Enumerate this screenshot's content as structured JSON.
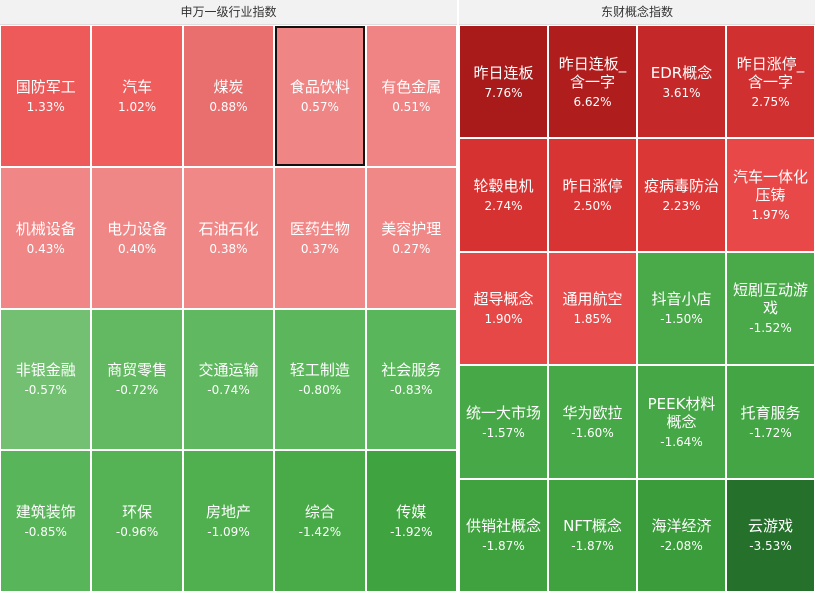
{
  "panels": [
    {
      "title": "申万一级行业指数",
      "columns": 5,
      "cells": [
        {
          "name": "国防军工",
          "change": "1.33%",
          "color": "#ee5a5a"
        },
        {
          "name": "汽车",
          "change": "1.02%",
          "color": "#ef5d5d"
        },
        {
          "name": "煤炭",
          "change": "0.88%",
          "color": "#e96e6e"
        },
        {
          "name": "食品饮料",
          "change": "0.57%",
          "color": "#f08585",
          "selected": true
        },
        {
          "name": "有色金属",
          "change": "0.51%",
          "color": "#f08383"
        },
        {
          "name": "机械设备",
          "change": "0.43%",
          "color": "#f08686"
        },
        {
          "name": "电力设备",
          "change": "0.40%",
          "color": "#f08787"
        },
        {
          "name": "石油石化",
          "change": "0.38%",
          "color": "#f08888"
        },
        {
          "name": "医药生物",
          "change": "0.37%",
          "color": "#f08888"
        },
        {
          "name": "美容护理",
          "change": "0.27%",
          "color": "#f08888"
        },
        {
          "name": "非银金融",
          "change": "-0.57%",
          "color": "#73c073"
        },
        {
          "name": "商贸零售",
          "change": "-0.72%",
          "color": "#62b962"
        },
        {
          "name": "交通运输",
          "change": "-0.74%",
          "color": "#60b860"
        },
        {
          "name": "轻工制造",
          "change": "-0.80%",
          "color": "#5cb75c"
        },
        {
          "name": "社会服务",
          "change": "-0.83%",
          "color": "#5ab65a"
        },
        {
          "name": "建筑装饰",
          "change": "-0.85%",
          "color": "#59b559"
        },
        {
          "name": "环保",
          "change": "-0.96%",
          "color": "#55b355"
        },
        {
          "name": "房地产",
          "change": "-1.09%",
          "color": "#50b050"
        },
        {
          "name": "综合",
          "change": "-1.42%",
          "color": "#48ab48"
        },
        {
          "name": "传媒",
          "change": "-1.92%",
          "color": "#3fa33f"
        }
      ]
    },
    {
      "title": "东财概念指数",
      "columns": 4,
      "cells": [
        {
          "name": "昨日连板",
          "change": "7.76%",
          "color": "#a91b1b"
        },
        {
          "name": "昨日连板_含一字",
          "change": "6.62%",
          "color": "#b01d1d"
        },
        {
          "name": "EDR概念",
          "change": "3.61%",
          "color": "#c42828"
        },
        {
          "name": "昨日涨停_含一字",
          "change": "2.75%",
          "color": "#d03030"
        },
        {
          "name": "轮毂电机",
          "change": "2.74%",
          "color": "#d63232"
        },
        {
          "name": "昨日涨停",
          "change": "2.50%",
          "color": "#d93434"
        },
        {
          "name": "疫病毒防治",
          "change": "2.23%",
          "color": "#dc3737"
        },
        {
          "name": "汽车一体化压铸",
          "change": "1.97%",
          "color": "#e84848"
        },
        {
          "name": "超导概念",
          "change": "1.90%",
          "color": "#e64848"
        },
        {
          "name": "通用航空",
          "change": "1.85%",
          "color": "#e94c4c"
        },
        {
          "name": "抖音小店",
          "change": "-1.50%",
          "color": "#4aaa4a"
        },
        {
          "name": "短剧互动游戏",
          "change": "-1.52%",
          "color": "#4aaa4a"
        },
        {
          "name": "统一大市场",
          "change": "-1.57%",
          "color": "#46a846"
        },
        {
          "name": "华为欧拉",
          "change": "-1.60%",
          "color": "#46a846"
        },
        {
          "name": "PEEK材料概念",
          "change": "-1.64%",
          "color": "#45a745"
        },
        {
          "name": "托育服务",
          "change": "-1.72%",
          "color": "#43a543"
        },
        {
          "name": "供销社概念",
          "change": "-1.87%",
          "color": "#3fa23f"
        },
        {
          "name": "NFT概念",
          "change": "-1.87%",
          "color": "#3fa23f"
        },
        {
          "name": "海洋经济",
          "change": "-2.08%",
          "color": "#3a9c3a"
        },
        {
          "name": "云游戏",
          "change": "-3.53%",
          "color": "#25702a"
        }
      ]
    }
  ]
}
